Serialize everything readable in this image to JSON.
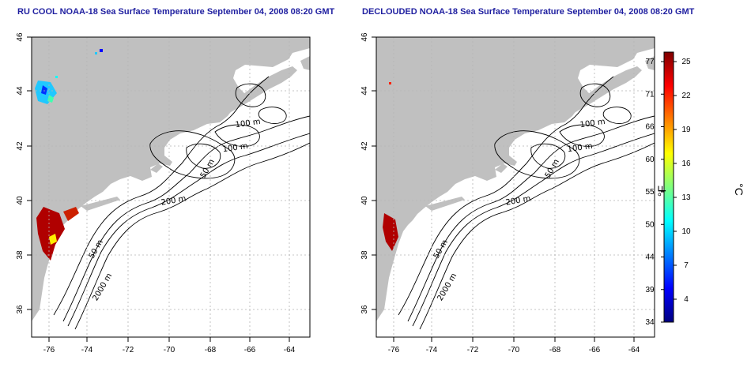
{
  "panels": [
    {
      "title": "RU COOL NOAA-18 Sea Surface Temperature September 04, 2008 08:20 GMT",
      "contour_labels": [
        "100 m",
        "100 m",
        "50 m",
        "200 m",
        "50 m",
        "2000 m"
      ],
      "lat_ticks": [
        "46",
        "44",
        "42",
        "40",
        "38",
        "36"
      ],
      "lon_ticks": [
        "-76",
        "-74",
        "-72",
        "-70",
        "-68",
        "-66",
        "-64"
      ]
    },
    {
      "title": "DECLOUDED NOAA-18 Sea Surface Temperature September 04, 2008 08:20 GMT",
      "contour_labels": [
        "100 m",
        "100 m",
        "50 m",
        "200 m",
        "50 m",
        "2000 m"
      ],
      "lat_ticks": [
        "46",
        "44",
        "42",
        "40",
        "38",
        "36"
      ],
      "lon_ticks": [
        "-76",
        "-74",
        "-72",
        "-70",
        "-68",
        "-66",
        "-64"
      ]
    }
  ],
  "colorbar": {
    "fahrenheit_ticks": [
      "77",
      "71",
      "66",
      "60",
      "55",
      "50",
      "44",
      "39",
      "34"
    ],
    "celsius_ticks": [
      "25",
      "22",
      "19",
      "16",
      "13",
      "10",
      "7",
      "4"
    ],
    "fahrenheit_label": "°F",
    "celsius_label": "°C",
    "colors": [
      "#00007f",
      "#0000ff",
      "#007fff",
      "#00ffff",
      "#7fff7f",
      "#ffff00",
      "#ff7f00",
      "#ff0000",
      "#7f0000"
    ]
  },
  "colors": {
    "land": "#c0c0c0",
    "title": "#1f1fa0",
    "grid": "#b4b4b4",
    "sst_warm": "#b00000"
  }
}
